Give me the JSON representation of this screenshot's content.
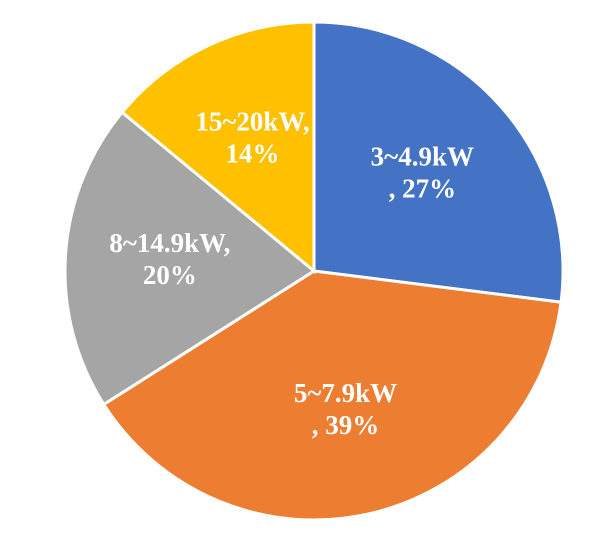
{
  "chart_data": {
    "type": "pie",
    "categories": [
      "3~4.9kW",
      "5~7.9kW",
      "8~14.9kW,",
      "15~20kW,"
    ],
    "values": [
      27,
      39,
      20,
      14
    ],
    "value_labels": [
      ", 27%",
      ", 39%",
      "20%",
      "14%"
    ],
    "colors": [
      "#4472c4",
      "#ed7d31",
      "#a5a5a5",
      "#ffc000"
    ]
  }
}
